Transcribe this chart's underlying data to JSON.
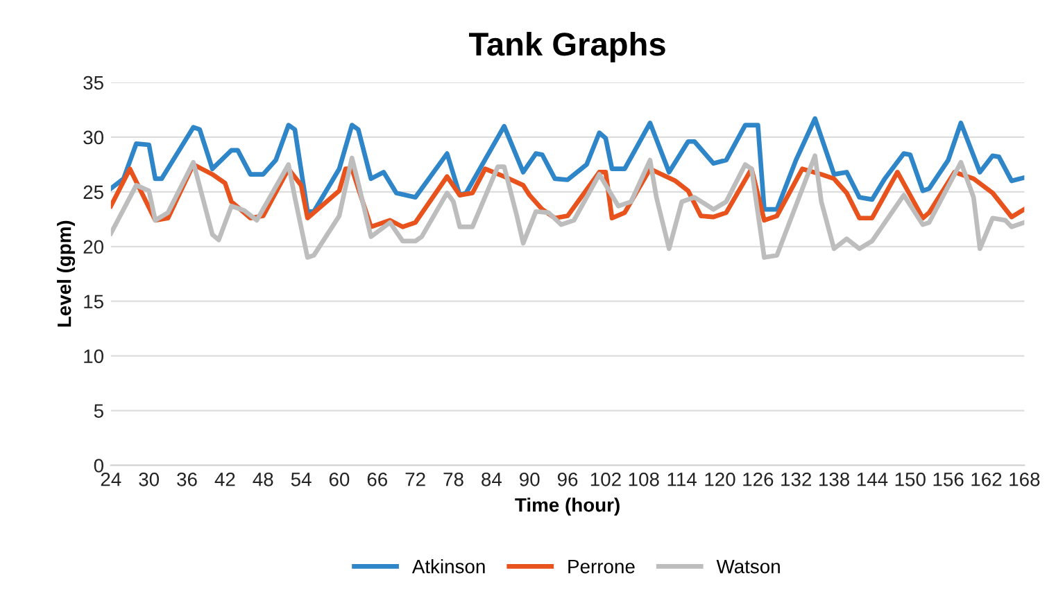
{
  "chart_data": {
    "type": "line",
    "title": "Tank Graphs",
    "xlabel": "Time (hour)",
    "ylabel": "Level (gpm)",
    "xlim": [
      24,
      168
    ],
    "xticks": [
      24,
      30,
      36,
      42,
      48,
      54,
      60,
      66,
      72,
      78,
      84,
      90,
      96,
      102,
      108,
      114,
      120,
      126,
      132,
      138,
      144,
      150,
      156,
      162,
      168
    ],
    "ylim": [
      0,
      35
    ],
    "yticks": [
      0,
      5,
      10,
      15,
      20,
      25,
      30,
      35
    ],
    "grid": "y",
    "legend": "bottom",
    "marker": "none",
    "line_style": "solid",
    "series": [
      {
        "name": "Atkinson",
        "color": "#2e86c8",
        "x": [
          24,
          26,
          28,
          30,
          31,
          32,
          37,
          38,
          40,
          43,
          44,
          46,
          48,
          50,
          52,
          53,
          55,
          56,
          60,
          62,
          63,
          65,
          67,
          69,
          72,
          77,
          79,
          80,
          86,
          89,
          91,
          92,
          94,
          96,
          99,
          101,
          102,
          103,
          105,
          107,
          109,
          112,
          115,
          116,
          119,
          121,
          124,
          126,
          127,
          129,
          132,
          135,
          138,
          140,
          142,
          144,
          146,
          149,
          150,
          152,
          153,
          156,
          158,
          161,
          163,
          164,
          166,
          168
        ],
        "values": [
          25.3,
          26.2,
          29.4,
          29.3,
          26.2,
          26.2,
          30.9,
          30.7,
          27.1,
          28.8,
          28.8,
          26.6,
          26.6,
          27.9,
          31.1,
          30.7,
          23.2,
          23.2,
          27.1,
          31.1,
          30.7,
          26.2,
          26.8,
          24.9,
          24.5,
          28.5,
          24.7,
          24.9,
          31.0,
          26.8,
          28.5,
          28.4,
          26.2,
          26.1,
          27.5,
          30.4,
          29.9,
          27.1,
          27.1,
          29.2,
          31.3,
          26.8,
          29.6,
          29.6,
          27.6,
          27.9,
          31.1,
          31.1,
          23.4,
          23.4,
          27.9,
          31.7,
          26.6,
          26.8,
          24.5,
          24.3,
          26.2,
          28.5,
          28.4,
          25.1,
          25.3,
          27.9,
          31.3,
          26.8,
          28.3,
          28.2,
          26.0,
          26.3
        ]
      },
      {
        "name": "Perrone",
        "color": "#e8531d",
        "x": [
          24,
          27,
          31,
          33,
          37,
          40,
          42,
          43,
          46,
          48,
          52,
          54,
          55,
          60,
          61,
          62,
          65,
          68,
          70,
          72,
          77,
          79,
          81,
          83,
          86,
          89,
          90,
          92,
          94,
          96,
          101,
          102,
          103,
          105,
          109,
          113,
          115,
          117,
          119,
          121,
          125,
          127,
          129,
          133,
          136,
          138,
          140,
          142,
          144,
          148,
          152,
          153,
          157,
          160,
          163,
          166,
          168
        ],
        "values": [
          23.7,
          27.1,
          22.4,
          22.6,
          27.5,
          26.6,
          25.8,
          24.1,
          22.6,
          22.8,
          27.1,
          25.6,
          22.6,
          25.1,
          27.1,
          27.1,
          21.8,
          22.4,
          21.8,
          22.2,
          26.4,
          24.7,
          24.9,
          27.1,
          26.4,
          25.6,
          24.7,
          23.4,
          22.6,
          22.8,
          26.8,
          26.8,
          22.6,
          23.1,
          27.1,
          26.0,
          25.1,
          22.8,
          22.7,
          23.1,
          27.1,
          22.4,
          22.8,
          27.1,
          26.6,
          26.2,
          24.9,
          22.6,
          22.6,
          26.8,
          22.6,
          23.1,
          26.8,
          26.2,
          24.9,
          22.7,
          23.4
        ]
      },
      {
        "name": "Watson",
        "color": "#bdbdbd",
        "x": [
          24,
          25,
          28,
          30,
          31,
          33,
          37,
          40,
          41,
          43,
          45,
          47,
          52,
          53,
          55,
          56,
          60,
          62,
          63,
          65,
          68,
          70,
          72,
          73,
          77,
          78,
          79,
          81,
          85,
          86,
          88,
          89,
          91,
          93,
          95,
          97,
          101,
          104,
          106,
          109,
          110,
          112,
          114,
          116,
          119,
          121,
          124,
          125,
          127,
          129,
          135,
          136,
          138,
          140,
          142,
          144,
          149,
          152,
          153,
          158,
          160,
          161,
          163,
          165,
          166,
          168
        ],
        "values": [
          21.2,
          22.3,
          25.6,
          25.1,
          22.4,
          23.1,
          27.7,
          21.1,
          20.6,
          23.7,
          23.3,
          22.4,
          27.5,
          24.5,
          19.0,
          19.2,
          22.8,
          28.1,
          25.8,
          20.9,
          22.2,
          20.5,
          20.5,
          20.9,
          24.9,
          24.1,
          21.8,
          21.8,
          27.3,
          27.3,
          22.8,
          20.3,
          23.2,
          23.1,
          22.0,
          22.4,
          26.6,
          23.7,
          24.1,
          27.9,
          24.5,
          19.8,
          24.1,
          24.5,
          23.4,
          24.1,
          27.5,
          27.1,
          19.0,
          19.2,
          28.3,
          24.1,
          19.8,
          20.7,
          19.8,
          20.5,
          24.7,
          22.0,
          22.2,
          27.7,
          24.5,
          19.8,
          22.6,
          22.4,
          21.8,
          22.2
        ]
      }
    ]
  }
}
